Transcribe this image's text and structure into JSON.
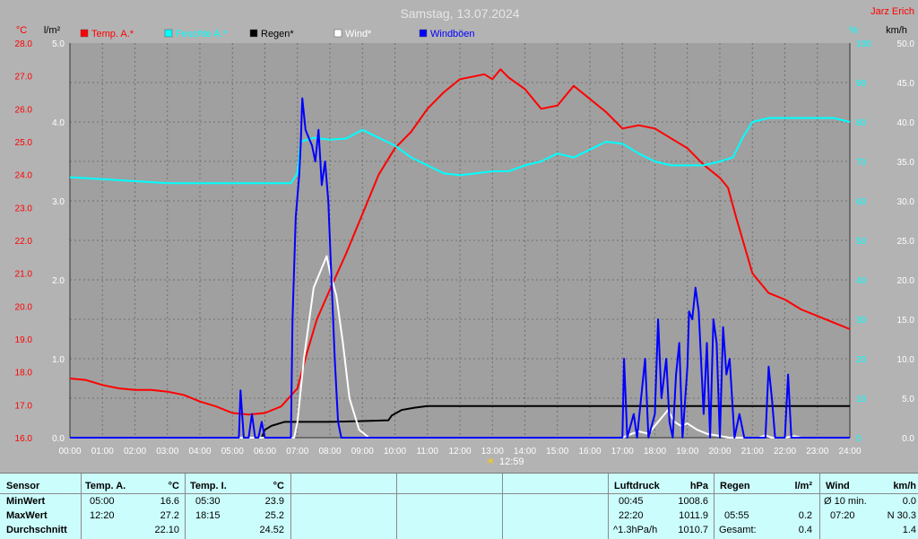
{
  "page": {
    "title": "Samstag, 13.07.2024",
    "station": "Jarz Erich",
    "marker_time": "12:59"
  },
  "chart_data": {
    "type": "line",
    "x_labels": [
      "00:00",
      "01:00",
      "02:00",
      "03:00",
      "04:00",
      "05:00",
      "06:00",
      "07:00",
      "08:00",
      "09:00",
      "10:00",
      "11:00",
      "12:00",
      "13:00",
      "14:00",
      "15:00",
      "16:00",
      "17:00",
      "18:00",
      "19:00",
      "20:00",
      "21:00",
      "22:00",
      "23:00",
      "24:00"
    ],
    "xlim": [
      0,
      24
    ],
    "axes": {
      "left_temp": {
        "unit": "°C",
        "ylim": [
          16,
          28
        ],
        "ticks": [
          "16.0",
          "17.0",
          "18.0",
          "19.0",
          "20.0",
          "21.0",
          "22.0",
          "23.0",
          "24.0",
          "25.0",
          "26.0",
          "27.0",
          "28.0"
        ],
        "color": "#ff0000"
      },
      "left_rain": {
        "unit": "l/m²",
        "ylim": [
          0,
          5
        ],
        "ticks": [
          "0.0",
          "1.0",
          "2.0",
          "3.0",
          "4.0",
          "5.0"
        ],
        "color": "#000000"
      },
      "right_hum": {
        "unit": "%",
        "ylim": [
          0,
          100
        ],
        "ticks": [
          "0",
          "10",
          "20",
          "30",
          "40",
          "50",
          "60",
          "70",
          "80",
          "90",
          "100"
        ],
        "color": "#00ffff"
      },
      "right_wind": {
        "unit": "km/h",
        "ylim": [
          0,
          50
        ],
        "ticks": [
          "0.0",
          "5.0",
          "10.0",
          "15.0",
          "20.0",
          "25.0",
          "30.0",
          "35.0",
          "40.0",
          "45.0",
          "50.0"
        ],
        "color": "#000000"
      }
    },
    "grid": true,
    "series": [
      {
        "name": "Temp. A.*",
        "color": "#ff0000",
        "axis": "left_temp",
        "points": [
          [
            0,
            17.8
          ],
          [
            0.5,
            17.75
          ],
          [
            1,
            17.6
          ],
          [
            1.5,
            17.5
          ],
          [
            2,
            17.45
          ],
          [
            2.5,
            17.45
          ],
          [
            3,
            17.4
          ],
          [
            3.5,
            17.3
          ],
          [
            4,
            17.1
          ],
          [
            4.5,
            16.95
          ],
          [
            5,
            16.75
          ],
          [
            5.5,
            16.7
          ],
          [
            6,
            16.75
          ],
          [
            6.5,
            16.95
          ],
          [
            7,
            17.5
          ],
          [
            7.3,
            18.6
          ],
          [
            7.6,
            19.6
          ],
          [
            8,
            20.5
          ],
          [
            8.5,
            21.6
          ],
          [
            9,
            22.8
          ],
          [
            9.5,
            24.0
          ],
          [
            10,
            24.8
          ],
          [
            10.5,
            25.3
          ],
          [
            11,
            26.0
          ],
          [
            11.5,
            26.5
          ],
          [
            12,
            26.9
          ],
          [
            12.5,
            27.0
          ],
          [
            12.75,
            27.05
          ],
          [
            13,
            26.9
          ],
          [
            13.25,
            27.2
          ],
          [
            13.5,
            26.95
          ],
          [
            14,
            26.6
          ],
          [
            14.5,
            26.0
          ],
          [
            15,
            26.1
          ],
          [
            15.5,
            26.7
          ],
          [
            16,
            26.3
          ],
          [
            16.5,
            25.9
          ],
          [
            17,
            25.4
          ],
          [
            17.5,
            25.5
          ],
          [
            18,
            25.4
          ],
          [
            18.5,
            25.1
          ],
          [
            19,
            24.8
          ],
          [
            19.5,
            24.3
          ],
          [
            20,
            23.9
          ],
          [
            20.25,
            23.6
          ],
          [
            20.5,
            22.7
          ],
          [
            21,
            21.0
          ],
          [
            21.5,
            20.4
          ],
          [
            22,
            20.2
          ],
          [
            22.5,
            19.9
          ],
          [
            23,
            19.7
          ],
          [
            23.5,
            19.5
          ],
          [
            24,
            19.3
          ]
        ]
      },
      {
        "name": "Feuchte A.*",
        "color": "#00ffff",
        "axis": "right_hum",
        "points": [
          [
            0,
            66
          ],
          [
            1,
            65.5
          ],
          [
            2,
            65
          ],
          [
            3,
            64.5
          ],
          [
            4,
            64.5
          ],
          [
            5,
            64.5
          ],
          [
            6,
            64.5
          ],
          [
            6.8,
            64.5
          ],
          [
            7,
            67
          ],
          [
            7.1,
            75
          ],
          [
            7.5,
            76
          ],
          [
            8,
            75.5
          ],
          [
            8.5,
            75.8
          ],
          [
            9,
            78
          ],
          [
            9.5,
            76
          ],
          [
            10,
            74
          ],
          [
            10.5,
            71
          ],
          [
            11,
            69
          ],
          [
            11.5,
            67
          ],
          [
            12,
            66.5
          ],
          [
            12.5,
            67
          ],
          [
            13,
            67.5
          ],
          [
            13.5,
            67.5
          ],
          [
            14,
            69
          ],
          [
            14.5,
            70
          ],
          [
            15,
            72
          ],
          [
            15.5,
            71
          ],
          [
            16,
            73
          ],
          [
            16.5,
            75
          ],
          [
            17,
            74.5
          ],
          [
            17.5,
            72
          ],
          [
            18,
            70
          ],
          [
            18.5,
            69
          ],
          [
            19,
            69
          ],
          [
            19.5,
            69
          ],
          [
            20,
            70
          ],
          [
            20.4,
            71
          ],
          [
            20.7,
            76
          ],
          [
            21,
            80
          ],
          [
            21.5,
            81
          ],
          [
            22,
            81
          ],
          [
            22.5,
            81
          ],
          [
            23,
            81
          ],
          [
            23.5,
            81
          ],
          [
            24,
            80
          ]
        ]
      },
      {
        "name": "Regen*",
        "color": "#000000",
        "axis": "left_rain",
        "points": [
          [
            0,
            0
          ],
          [
            5.9,
            0
          ],
          [
            6.0,
            0.1
          ],
          [
            6.2,
            0.15
          ],
          [
            6.6,
            0.2
          ],
          [
            7.0,
            0.2
          ],
          [
            8.0,
            0.2
          ],
          [
            9.0,
            0.21
          ],
          [
            9.8,
            0.22
          ],
          [
            9.9,
            0.28
          ],
          [
            10.2,
            0.35
          ],
          [
            10.6,
            0.38
          ],
          [
            11,
            0.4
          ],
          [
            24,
            0.4
          ]
        ]
      },
      {
        "name": "Wind*",
        "color": "#ffffff",
        "axis": "right_wind",
        "points": [
          [
            0,
            0
          ],
          [
            6.9,
            0
          ],
          [
            7.0,
            2
          ],
          [
            7.2,
            10
          ],
          [
            7.5,
            19
          ],
          [
            7.7,
            21
          ],
          [
            7.9,
            23
          ],
          [
            8.0,
            21
          ],
          [
            8.2,
            18
          ],
          [
            8.4,
            12
          ],
          [
            8.6,
            5
          ],
          [
            8.9,
            1
          ],
          [
            9.2,
            0
          ],
          [
            17,
            0
          ],
          [
            17.3,
            0.5
          ],
          [
            17.5,
            0.8
          ],
          [
            17.8,
            0.5
          ],
          [
            18.0,
            1.5
          ],
          [
            18.2,
            2.5
          ],
          [
            18.4,
            3.5
          ],
          [
            18.6,
            2
          ],
          [
            18.8,
            1.5
          ],
          [
            19.0,
            1.8
          ],
          [
            19.3,
            1
          ],
          [
            19.6,
            0.5
          ],
          [
            20,
            0.2
          ],
          [
            20.3,
            0
          ],
          [
            21.2,
            0
          ],
          [
            21.4,
            0.3
          ],
          [
            21.6,
            0
          ],
          [
            22,
            0
          ],
          [
            22.3,
            0.2
          ],
          [
            22.5,
            0
          ],
          [
            24,
            0
          ]
        ]
      },
      {
        "name": "Windböen",
        "color": "#0000ff",
        "axis": "right_wind",
        "points": [
          [
            0,
            0
          ],
          [
            5.2,
            0
          ],
          [
            5.25,
            6
          ],
          [
            5.35,
            0
          ],
          [
            5.5,
            0
          ],
          [
            5.6,
            3
          ],
          [
            5.7,
            0
          ],
          [
            5.8,
            0
          ],
          [
            5.9,
            2
          ],
          [
            6.0,
            0
          ],
          [
            6.8,
            0
          ],
          [
            6.85,
            15
          ],
          [
            6.95,
            28
          ],
          [
            7.05,
            33
          ],
          [
            7.1,
            37
          ],
          [
            7.15,
            43
          ],
          [
            7.25,
            39
          ],
          [
            7.35,
            38
          ],
          [
            7.45,
            37
          ],
          [
            7.55,
            35
          ],
          [
            7.65,
            39
          ],
          [
            7.75,
            32
          ],
          [
            7.85,
            35
          ],
          [
            7.95,
            30
          ],
          [
            8.05,
            20
          ],
          [
            8.15,
            10
          ],
          [
            8.25,
            2
          ],
          [
            8.35,
            0
          ],
          [
            17,
            0
          ],
          [
            17.05,
            10
          ],
          [
            17.15,
            0
          ],
          [
            17.35,
            3
          ],
          [
            17.45,
            0
          ],
          [
            17.7,
            10
          ],
          [
            17.8,
            0
          ],
          [
            18.0,
            3
          ],
          [
            18.1,
            15
          ],
          [
            18.2,
            5
          ],
          [
            18.35,
            10
          ],
          [
            18.45,
            2
          ],
          [
            18.55,
            0
          ],
          [
            18.65,
            8
          ],
          [
            18.75,
            12
          ],
          [
            18.85,
            0
          ],
          [
            19.0,
            9
          ],
          [
            19.05,
            16
          ],
          [
            19.15,
            15
          ],
          [
            19.25,
            19
          ],
          [
            19.35,
            16
          ],
          [
            19.5,
            3
          ],
          [
            19.6,
            12
          ],
          [
            19.7,
            0
          ],
          [
            19.8,
            15
          ],
          [
            19.9,
            12
          ],
          [
            20.0,
            0
          ],
          [
            20.1,
            14
          ],
          [
            20.2,
            8
          ],
          [
            20.3,
            10
          ],
          [
            20.45,
            0
          ],
          [
            20.6,
            3
          ],
          [
            20.75,
            0
          ],
          [
            21.4,
            0
          ],
          [
            21.5,
            9
          ],
          [
            21.6,
            5
          ],
          [
            21.7,
            0
          ],
          [
            22,
            0
          ],
          [
            22.1,
            8
          ],
          [
            22.2,
            0
          ],
          [
            24,
            0
          ]
        ]
      }
    ]
  },
  "legend": [
    {
      "label": "Temp. A.*",
      "color": "#ff0000"
    },
    {
      "label": "Feuchte A.*",
      "color": "#00ffff"
    },
    {
      "label": "Regen*",
      "color": "#000000"
    },
    {
      "label": "Wind*",
      "color": "#ffffff"
    },
    {
      "label": "Windböen",
      "color": "#0000ff"
    }
  ],
  "table": {
    "sensor": {
      "header": "Sensor",
      "rows": [
        "MinWert",
        "MaxWert",
        "Durchschnitt"
      ]
    },
    "temp_a": {
      "header": "Temp. A.",
      "unit": "°C",
      "rows": [
        {
          "time": "05:00",
          "value": "16.6"
        },
        {
          "time": "12:20",
          "value": "27.2"
        },
        {
          "time": "",
          "value": "22.10"
        }
      ]
    },
    "temp_i": {
      "header": "Temp. I.",
      "unit": "°C",
      "rows": [
        {
          "time": "05:30",
          "value": "23.9"
        },
        {
          "time": "18:15",
          "value": "25.2"
        },
        {
          "time": "",
          "value": "24.52"
        }
      ]
    },
    "pressure": {
      "header": "Luftdruck",
      "unit": "hPa",
      "rows": [
        {
          "time": "00:45",
          "value": "1008.6"
        },
        {
          "time": "22:20",
          "value": "1011.9"
        },
        {
          "time": "^1.3hPa/h",
          "value": "1010.7"
        }
      ]
    },
    "rain": {
      "header": "Regen",
      "unit": "l/m²",
      "rows": [
        {
          "time": "",
          "value": ""
        },
        {
          "time": "05:55",
          "value": "0.2"
        },
        {
          "time": "Gesamt:",
          "value": "0.4"
        }
      ]
    },
    "wind": {
      "header": "Wind",
      "unit": "km/h",
      "rows": [
        {
          "time": "Ø 10 min.",
          "value": "0.0"
        },
        {
          "time": "07:20",
          "value": "N 30.3"
        },
        {
          "time": "",
          "value": "1.4"
        }
      ]
    }
  }
}
